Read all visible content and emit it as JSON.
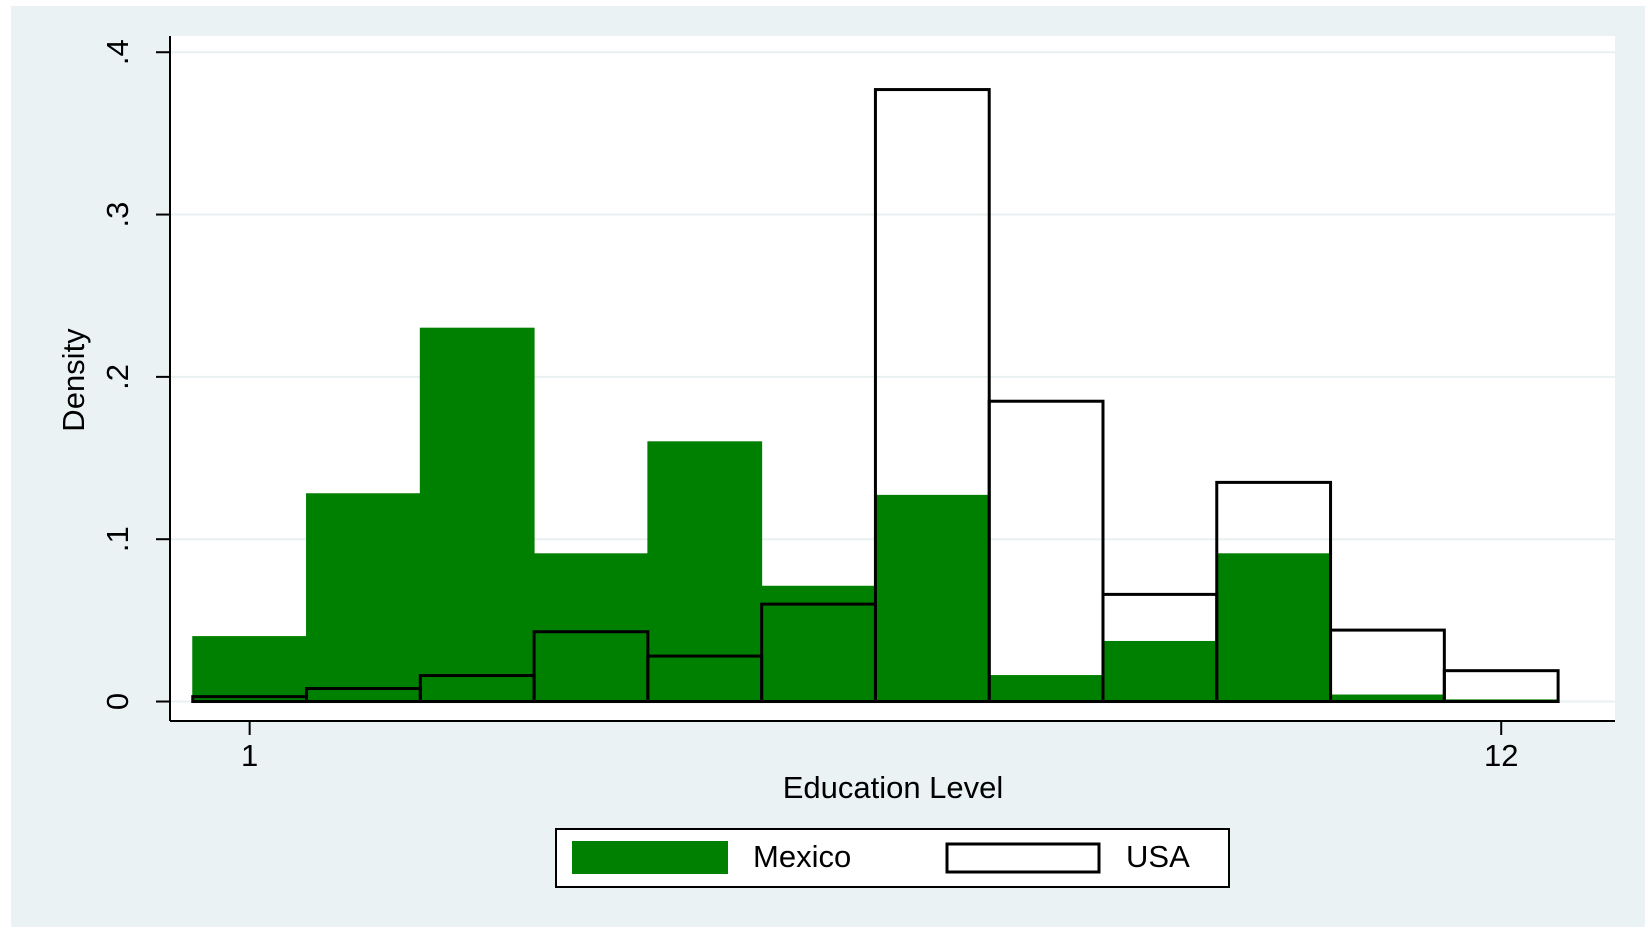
{
  "chart_data": {
    "type": "bar",
    "title": "",
    "xlabel": "Education Level",
    "ylabel": "Density",
    "x_ticks": [
      {
        "value": 1,
        "label": "1"
      },
      {
        "value": 12,
        "label": "12"
      }
    ],
    "y_ticks": [
      {
        "value": 0,
        "label": "0"
      },
      {
        "value": 0.1,
        "label": ".1"
      },
      {
        "value": 0.2,
        "label": ".2"
      },
      {
        "value": 0.3,
        "label": ".3"
      },
      {
        "value": 0.4,
        "label": ".4"
      }
    ],
    "xlim": [
      0.3,
      13.0
    ],
    "ylim": [
      -0.012,
      0.41
    ],
    "bin_width": 1,
    "grid": true,
    "legend_position": "bottom",
    "series": [
      {
        "name": "Mexico",
        "style": "filled",
        "color": "#008000",
        "x": [
          1,
          2,
          3,
          4,
          5,
          6,
          7,
          8,
          9,
          10,
          11,
          12
        ],
        "values": [
          0.04,
          0.128,
          0.23,
          0.091,
          0.16,
          0.071,
          0.127,
          0.016,
          0.037,
          0.091,
          0.004,
          0.001
        ]
      },
      {
        "name": "USA",
        "style": "outline",
        "color": "#000000",
        "x": [
          1,
          2,
          3,
          4,
          5,
          6,
          7,
          8,
          9,
          10,
          11,
          12
        ],
        "values": [
          0.003,
          0.008,
          0.016,
          0.043,
          0.028,
          0.06,
          0.377,
          0.185,
          0.066,
          0.135,
          0.044,
          0.019
        ]
      }
    ],
    "colors": {
      "outer_background": "#eaf2f3",
      "plot_background": "#ffffff",
      "gridline": "#e9f0f1"
    }
  }
}
